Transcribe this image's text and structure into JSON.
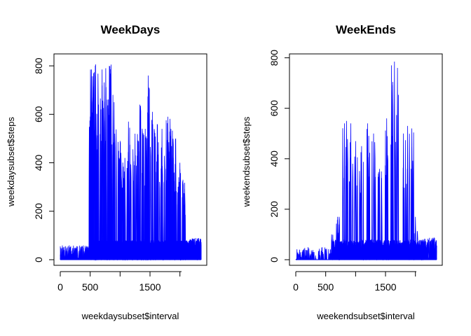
{
  "chart_data": [
    {
      "type": "line",
      "title": "WeekDays",
      "xlabel": "weekdaysubset$interval",
      "ylabel": "weekdaysubset$steps",
      "xlim": [
        0,
        2355
      ],
      "ylim": [
        0,
        806
      ],
      "xticks": [
        0,
        500,
        1000,
        1500,
        2000
      ],
      "xtick_labels": [
        "0",
        "500",
        "",
        "1500",
        ""
      ],
      "yticks": [
        0,
        200,
        400,
        600,
        800
      ],
      "ytick_labels": [
        "0",
        "200",
        "400",
        "600",
        "800"
      ],
      "series_color": "#0000ff",
      "peaks": [
        {
          "x": 520,
          "y": 785
        },
        {
          "x": 555,
          "y": 770
        },
        {
          "x": 590,
          "y": 806
        },
        {
          "x": 640,
          "y": 640
        },
        {
          "x": 700,
          "y": 785
        },
        {
          "x": 760,
          "y": 790
        },
        {
          "x": 820,
          "y": 800
        },
        {
          "x": 850,
          "y": 805
        },
        {
          "x": 900,
          "y": 650
        },
        {
          "x": 1000,
          "y": 490
        },
        {
          "x": 1080,
          "y": 420
        },
        {
          "x": 1140,
          "y": 570
        },
        {
          "x": 1250,
          "y": 520
        },
        {
          "x": 1330,
          "y": 640
        },
        {
          "x": 1420,
          "y": 540
        },
        {
          "x": 1470,
          "y": 760
        },
        {
          "x": 1540,
          "y": 610
        },
        {
          "x": 1620,
          "y": 560
        },
        {
          "x": 1700,
          "y": 540
        },
        {
          "x": 1800,
          "y": 590
        },
        {
          "x": 1850,
          "y": 540
        },
        {
          "x": 1930,
          "y": 500
        },
        {
          "x": 2000,
          "y": 400
        },
        {
          "x": 2050,
          "y": 330
        }
      ]
    },
    {
      "type": "line",
      "title": "WeekEnds",
      "xlabel": "weekendsubset$interval",
      "ylabel": "weekendsubset$steps",
      "xlim": [
        0,
        2355
      ],
      "ylim": [
        0,
        785
      ],
      "xticks": [
        0,
        500,
        1000,
        1500,
        2000
      ],
      "xtick_labels": [
        "0",
        "500",
        "",
        "1500",
        ""
      ],
      "yticks": [
        0,
        200,
        400,
        600,
        800
      ],
      "ytick_labels": [
        "0",
        "200",
        "400",
        "600",
        "800"
      ],
      "series_color": "#0000ff",
      "peaks": [
        {
          "x": 600,
          "y": 100
        },
        {
          "x": 700,
          "y": 170
        },
        {
          "x": 815,
          "y": 540
        },
        {
          "x": 850,
          "y": 550
        },
        {
          "x": 920,
          "y": 540
        },
        {
          "x": 1000,
          "y": 470
        },
        {
          "x": 1100,
          "y": 450
        },
        {
          "x": 1200,
          "y": 540
        },
        {
          "x": 1300,
          "y": 500
        },
        {
          "x": 1400,
          "y": 360
        },
        {
          "x": 1520,
          "y": 560
        },
        {
          "x": 1600,
          "y": 770
        },
        {
          "x": 1650,
          "y": 785
        },
        {
          "x": 1700,
          "y": 760
        },
        {
          "x": 1800,
          "y": 500
        },
        {
          "x": 1870,
          "y": 530
        },
        {
          "x": 1940,
          "y": 520
        },
        {
          "x": 2000,
          "y": 170
        }
      ]
    }
  ]
}
